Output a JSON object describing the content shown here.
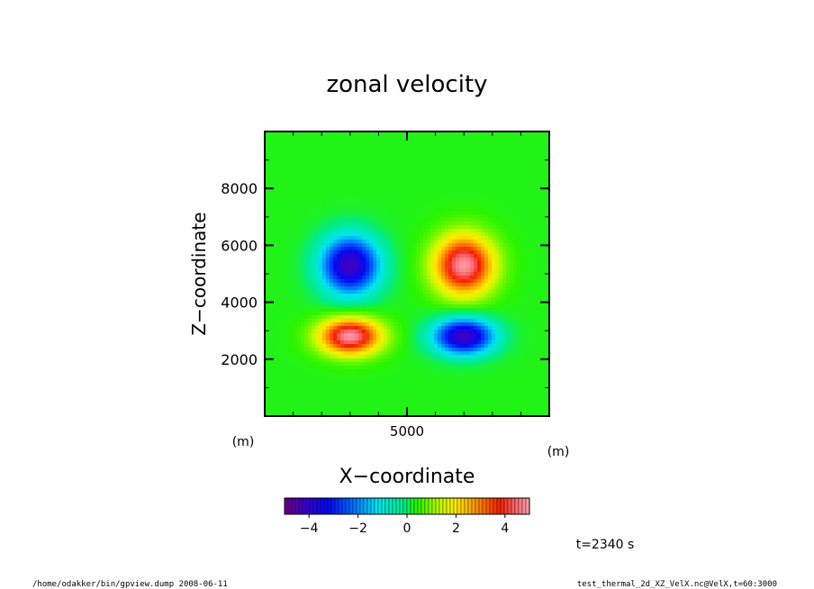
{
  "chart_data": {
    "type": "heatmap",
    "title": "zonal velocity",
    "xlabel": "X−coordinate",
    "ylabel": "Z−coordinate",
    "x_unit": "(m)",
    "y_unit": "(m)",
    "xlim": [
      0,
      10000
    ],
    "ylim": [
      0,
      10000
    ],
    "x_ticks": [
      {
        "value": 5000,
        "label": "5000"
      }
    ],
    "y_ticks": [
      {
        "value": 2000,
        "label": "2000"
      },
      {
        "value": 4000,
        "label": "4000"
      },
      {
        "value": 6000,
        "label": "6000"
      },
      {
        "value": 8000,
        "label": "8000"
      }
    ],
    "background_value": 0.3,
    "features": [
      {
        "x": 3000,
        "z": 5300,
        "sx": 1300,
        "sz": 1300,
        "amplitude": -4.6
      },
      {
        "x": 7000,
        "z": 5300,
        "sx": 1300,
        "sz": 1300,
        "amplitude": 4.6
      },
      {
        "x": 3000,
        "z": 2800,
        "sx": 1350,
        "sz": 800,
        "amplitude": 4.6
      },
      {
        "x": 7000,
        "z": 2800,
        "sx": 1350,
        "sz": 800,
        "amplitude": -4.6
      }
    ],
    "colorbar": {
      "min": -5,
      "max": 5,
      "tick_values": [
        -4,
        -2,
        0,
        2,
        4
      ],
      "tick_labels": [
        "−4",
        "−2",
        "0",
        "2",
        "4"
      ]
    },
    "annotation": "t=2340  s"
  },
  "footer": {
    "left": "/home/odakker/bin/gpview.dump  2008-06-11",
    "right": "test_thermal_2d_XZ_VelX.nc@VelX,t=60:3000"
  }
}
